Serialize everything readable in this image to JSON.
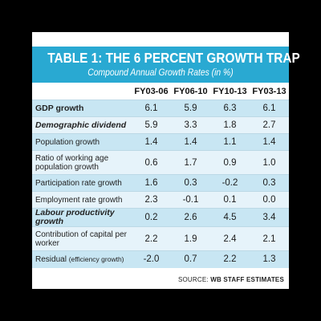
{
  "table": {
    "title": "TABLE 1: THE 6 PERCENT GROWTH TRAP",
    "subtitle": "Compound Annual Growth Rates (in %)",
    "columns": [
      "FY03-06",
      "FY06-10",
      "FY10-13",
      "FY03-13"
    ],
    "rows": [
      {
        "label": "GDP growth",
        "style": "bold",
        "values": [
          "6.1",
          "5.9",
          "6.3",
          "6.1"
        ]
      },
      {
        "label": "Demographic dividend",
        "style": "bolditalic",
        "values": [
          "5.9",
          "3.3",
          "1.8",
          "2.7"
        ]
      },
      {
        "label": "Population growth",
        "style": "normal",
        "values": [
          "1.4",
          "1.4",
          "1.1",
          "1.4"
        ]
      },
      {
        "label": "Ratio of working age population growth",
        "style": "normal",
        "values": [
          "0.6",
          "1.7",
          "0.9",
          "1.0"
        ]
      },
      {
        "label": "Participation rate growth",
        "style": "normal",
        "values": [
          "1.6",
          "0.3",
          "-0.2",
          "0.3"
        ]
      },
      {
        "label": "Employment rate growth",
        "style": "normal",
        "values": [
          "2.3",
          "-0.1",
          "0.1",
          "0.0"
        ]
      },
      {
        "label": "Labour productivity growth",
        "style": "bolditalic",
        "values": [
          "0.2",
          "2.6",
          "4.5",
          "3.4"
        ]
      },
      {
        "label": "Contribution of capital per worker",
        "style": "normal",
        "values": [
          "2.2",
          "1.9",
          "2.4",
          "2.1"
        ]
      },
      {
        "label": "Residual",
        "label_note": "(efficiency growth)",
        "style": "normal",
        "values": [
          "-2.0",
          "0.7",
          "2.2",
          "1.3"
        ]
      }
    ],
    "source_label": "SOURCE:",
    "source_text": "WB STAFF ESTIMATES"
  },
  "colors": {
    "header_bg": "#29a9d2",
    "row_odd": "#c8e6f3",
    "row_even": "#e6f3fa"
  }
}
